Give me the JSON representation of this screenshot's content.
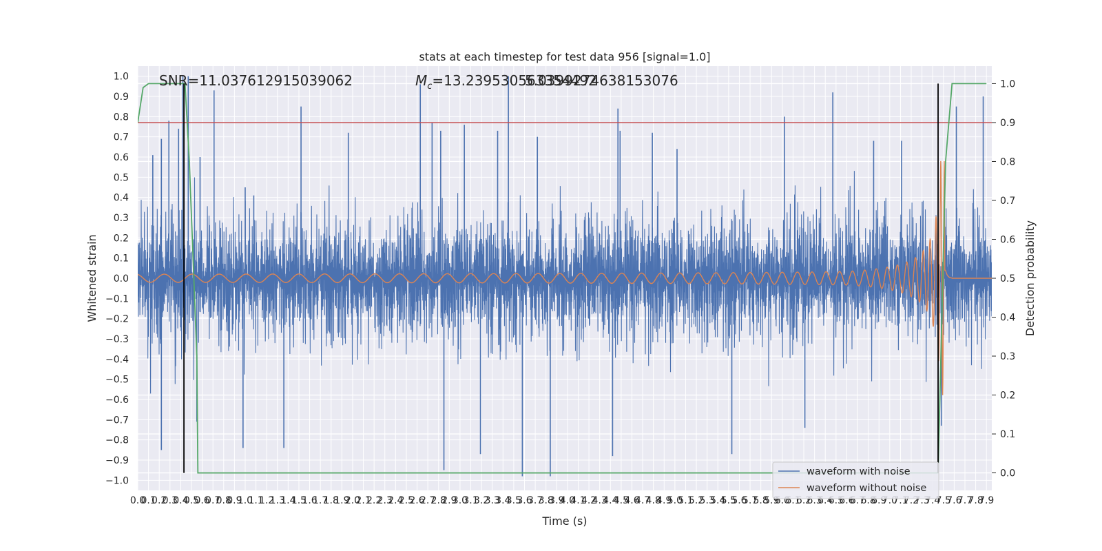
{
  "chart_data": {
    "type": "line",
    "title": "stats at each timestep for test data 956 [signal=1.0]",
    "xlabel": "Time (s)",
    "ylabel": "Whitened strain",
    "y2label": "Detection probability",
    "annotations": {
      "snr": "SNR=11.037612915039062",
      "mc_symbol": "M",
      "mc_sub": "c",
      "mc_value": "=13.239530563354492",
      "mc_overlap": "5.0399274638153076"
    },
    "xlim": [
      0.0,
      7.95
    ],
    "ylim": [
      -1.05,
      1.05
    ],
    "y2lim": [
      -0.045,
      1.045
    ],
    "xticks": [
      0.0,
      0.1,
      0.2,
      0.3,
      0.4,
      0.5,
      0.6,
      0.7,
      0.8,
      0.9,
      1.0,
      1.1,
      1.2,
      1.3,
      1.4,
      1.5,
      1.6,
      1.7,
      1.8,
      1.9,
      2.0,
      2.1,
      2.2,
      2.3,
      2.4,
      2.5,
      2.6,
      2.7,
      2.8,
      2.9,
      3.0,
      3.1,
      3.2,
      3.3,
      3.4,
      3.5,
      3.6,
      3.7,
      3.8,
      3.9,
      4.0,
      4.1,
      4.2,
      4.3,
      4.4,
      4.5,
      4.6,
      4.7,
      4.8,
      4.9,
      5.0,
      5.1,
      5.2,
      5.3,
      5.4,
      5.5,
      5.6,
      5.7,
      5.8,
      5.9,
      6.0,
      6.1,
      6.2,
      6.3,
      6.4,
      6.5,
      6.6,
      6.7,
      6.8,
      6.9,
      7.0,
      7.1,
      7.2,
      7.3,
      7.4,
      7.5,
      7.6,
      7.7,
      7.8,
      7.9
    ],
    "yticks": [
      -1.0,
      -0.9,
      -0.8,
      -0.7,
      -0.6,
      -0.5,
      -0.4,
      -0.3,
      -0.2,
      -0.1,
      0.0,
      0.1,
      0.2,
      0.3,
      0.4,
      0.5,
      0.6,
      0.7,
      0.8,
      0.9,
      1.0
    ],
    "y2ticks": [
      0.0,
      0.1,
      0.2,
      0.3,
      0.4,
      0.5,
      0.6,
      0.7,
      0.8,
      0.9,
      1.0
    ],
    "threshold": 0.9,
    "vlines": [
      0.43,
      7.45
    ],
    "series": [
      {
        "name": "waveform with noise",
        "color": "#4c72b0",
        "axis": "left",
        "description_values": "dense noisy strain, amplitude ~0.5 typical with spikes to ±1.0"
      },
      {
        "name": "waveform without noise",
        "color": "#dd8452",
        "axis": "left",
        "chirp": {
          "start_amp": 0.02,
          "peak_time": 7.52,
          "peak_amp": 0.58,
          "min_amp": -0.42,
          "end_time": 7.58
        }
      },
      {
        "name": "detection probability",
        "color": "#55a868",
        "axis": "right",
        "points": [
          [
            0.0,
            0.9
          ],
          [
            0.05,
            0.99
          ],
          [
            0.1,
            1.0
          ],
          [
            0.44,
            1.0
          ],
          [
            0.48,
            0.8
          ],
          [
            0.55,
            0.3
          ],
          [
            0.56,
            0.0
          ],
          [
            7.45,
            0.0
          ],
          [
            7.52,
            0.8
          ],
          [
            7.58,
            1.0
          ],
          [
            7.9,
            1.0
          ]
        ]
      }
    ],
    "noise_spikes": [
      [
        0.14,
        0.61
      ],
      [
        0.22,
        0.69
      ],
      [
        0.29,
        0.78
      ],
      [
        0.38,
        0.74
      ],
      [
        0.42,
        1.0
      ],
      [
        0.47,
        1.0
      ],
      [
        0.58,
        0.6
      ],
      [
        0.71,
        0.93
      ],
      [
        1.0,
        0.45
      ],
      [
        1.08,
        0.41
      ],
      [
        1.52,
        0.85
      ],
      [
        1.96,
        0.72
      ],
      [
        2.63,
        0.96
      ],
      [
        2.74,
        0.77
      ],
      [
        2.82,
        0.73
      ],
      [
        3.04,
        0.76
      ],
      [
        3.35,
        0.73
      ],
      [
        3.45,
        1.0
      ],
      [
        3.72,
        0.7
      ],
      [
        4.49,
        0.73
      ],
      [
        4.47,
        0.84
      ],
      [
        4.79,
        0.72
      ],
      [
        5.02,
        0.64
      ],
      [
        6.02,
        0.8
      ],
      [
        6.47,
        0.92
      ],
      [
        6.85,
        0.68
      ],
      [
        7.11,
        0.68
      ],
      [
        7.62,
        0.85
      ],
      [
        7.87,
        0.9
      ],
      [
        0.22,
        -0.85
      ],
      [
        0.55,
        -0.71
      ],
      [
        0.98,
        -0.84
      ],
      [
        1.36,
        -0.84
      ],
      [
        2.85,
        -0.95
      ],
      [
        3.19,
        -0.87
      ],
      [
        3.58,
        -0.98
      ],
      [
        3.84,
        -0.98
      ],
      [
        4.42,
        -0.88
      ],
      [
        5.53,
        -0.87
      ],
      [
        6.21,
        -0.74
      ],
      [
        7.48,
        -0.73
      ]
    ],
    "legend_loc": "lower right",
    "grid": true
  }
}
